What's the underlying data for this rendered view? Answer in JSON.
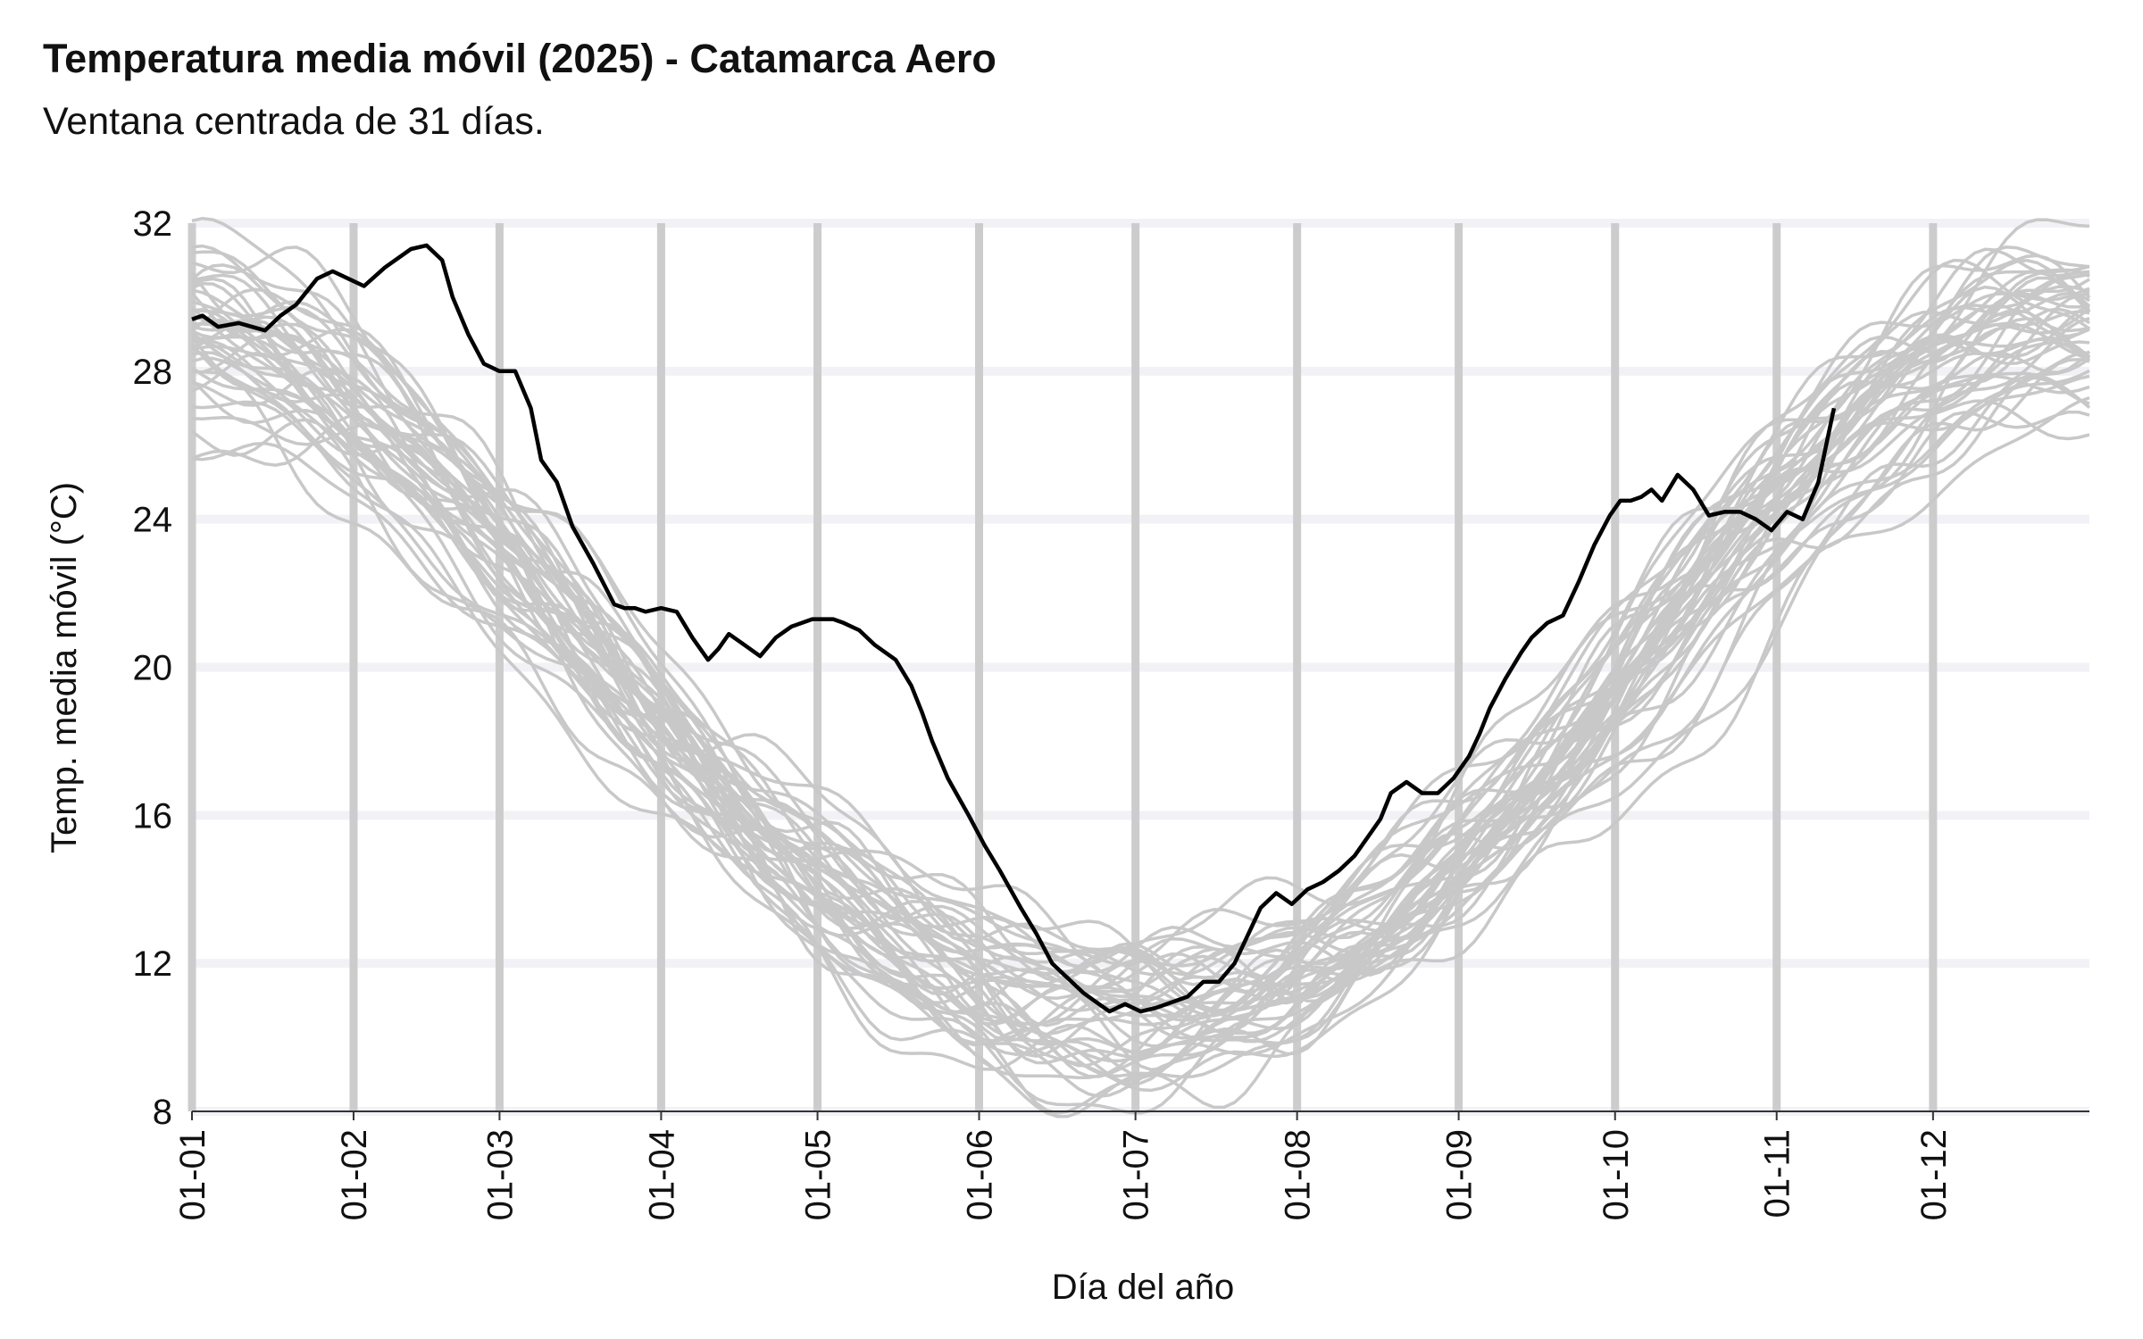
{
  "chart_data": {
    "type": "line",
    "title": "Temperatura media móvil (2025) - Catamarca Aero",
    "subtitle": "Ventana centrada de 31 días.",
    "xlabel": "Día del año",
    "ylabel": "Temp. media móvil (°C)",
    "xlim": [
      1,
      365
    ],
    "ylim": [
      8,
      32
    ],
    "x_ticks": [
      {
        "label": "01-01",
        "day": 1
      },
      {
        "label": "01-02",
        "day": 32
      },
      {
        "label": "01-03",
        "day": 60
      },
      {
        "label": "01-04",
        "day": 91
      },
      {
        "label": "01-05",
        "day": 121
      },
      {
        "label": "01-06",
        "day": 152
      },
      {
        "label": "01-07",
        "day": 182
      },
      {
        "label": "01-08",
        "day": 213
      },
      {
        "label": "01-09",
        "day": 244
      },
      {
        "label": "01-10",
        "day": 274
      },
      {
        "label": "01-11",
        "day": 305
      },
      {
        "label": "01-12",
        "day": 335
      }
    ],
    "y_ticks": [
      8,
      12,
      16,
      20,
      24,
      28,
      32
    ],
    "grid": true,
    "colors": {
      "highlight": "#000000",
      "history": "#c8c8c8",
      "month_lines": "#cccccc",
      "h_grid": "#f2f2f6"
    },
    "series": [
      {
        "highlight": true,
        "x": [
          1,
          3,
          6,
          10,
          15,
          18,
          21,
          25,
          28,
          31,
          34,
          38,
          43,
          46,
          49,
          51,
          54,
          57,
          60,
          63,
          66,
          68,
          71,
          74,
          78,
          82,
          84,
          86,
          88,
          91,
          94,
          97,
          100,
          102,
          104,
          107,
          110,
          113,
          116,
          120,
          122,
          124,
          126,
          129,
          132,
          136,
          139,
          141,
          143,
          146,
          150,
          153,
          156,
          160,
          163,
          166,
          169,
          172,
          175,
          177,
          180,
          183,
          186,
          188,
          190,
          192,
          195,
          198,
          201,
          203,
          206,
          209,
          212,
          215,
          218,
          221,
          224,
          227,
          229,
          231,
          234,
          237,
          240,
          243,
          246,
          248,
          250,
          253,
          256,
          258,
          261,
          264,
          267,
          270,
          273,
          275,
          277,
          279,
          281,
          283,
          286,
          289,
          292,
          295,
          298,
          301,
          304,
          307,
          310,
          313,
          316
        ],
        "values": [
          29.4,
          29.5,
          29.2,
          29.3,
          29.1,
          29.5,
          29.8,
          30.5,
          30.7,
          30.5,
          30.3,
          30.8,
          31.3,
          31.4,
          31.0,
          30.0,
          29.0,
          28.2,
          28.0,
          28.0,
          27.0,
          25.6,
          25.0,
          23.8,
          22.8,
          21.7,
          21.6,
          21.6,
          21.5,
          21.6,
          21.5,
          20.8,
          20.2,
          20.5,
          20.9,
          20.6,
          20.3,
          20.8,
          21.1,
          21.3,
          21.3,
          21.3,
          21.2,
          21.0,
          20.6,
          20.2,
          19.5,
          18.8,
          18.0,
          17.0,
          16.0,
          15.2,
          14.5,
          13.5,
          12.8,
          12.0,
          11.6,
          11.2,
          10.9,
          10.7,
          10.9,
          10.7,
          10.8,
          10.9,
          11.0,
          11.1,
          11.5,
          11.5,
          12.0,
          12.6,
          13.5,
          13.9,
          13.6,
          14.0,
          14.2,
          14.5,
          14.9,
          15.5,
          15.9,
          16.6,
          16.9,
          16.6,
          16.6,
          17.0,
          17.6,
          18.2,
          18.9,
          19.7,
          20.4,
          20.8,
          21.2,
          21.4,
          22.3,
          23.3,
          24.1,
          24.5,
          24.5,
          24.6,
          24.8,
          24.5,
          25.2,
          24.8,
          24.1,
          24.2,
          24.2,
          24.0,
          23.7,
          24.2,
          24.0,
          25.0,
          27.0
        ],
        "history_count": 44
      }
    ]
  }
}
